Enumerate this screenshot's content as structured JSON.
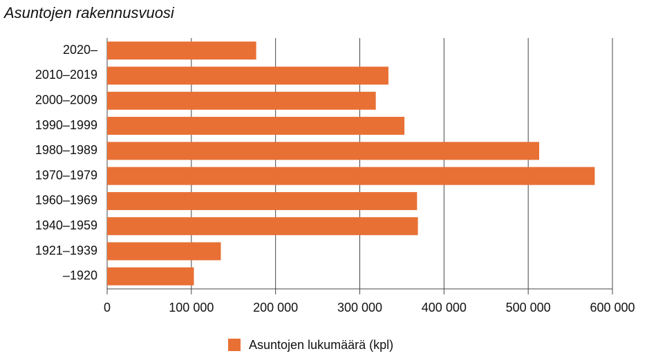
{
  "chart_data": {
    "type": "hbar",
    "title": "Asuntojen rakennusvuosi",
    "categories": [
      "2020–",
      "2010–2019",
      "2000–2009",
      "1990–1999",
      "1980–1989",
      "1970–1979",
      "1960–1969",
      "1940–1959",
      "1921–1939",
      "–1920"
    ],
    "series": [
      {
        "name": "Asuntojen lukumäärä (kpl)",
        "color": "#e87035",
        "values": [
          177000,
          334000,
          319000,
          353000,
          513000,
          579000,
          368000,
          369000,
          135000,
          103000
        ]
      }
    ],
    "xlim": [
      0,
      600000
    ],
    "xticks": [
      0,
      {
        "value": 100000,
        "label": "100 000"
      },
      {
        "value": 200000,
        "label": "200 000"
      },
      {
        "value": 300000,
        "label": "300 000"
      },
      {
        "value": 400000,
        "label": "400 000"
      },
      {
        "value": 500000,
        "label": "500 000"
      },
      {
        "value": 600000,
        "label": "600 000"
      }
    ],
    "grid": true,
    "legend": "bottom"
  }
}
